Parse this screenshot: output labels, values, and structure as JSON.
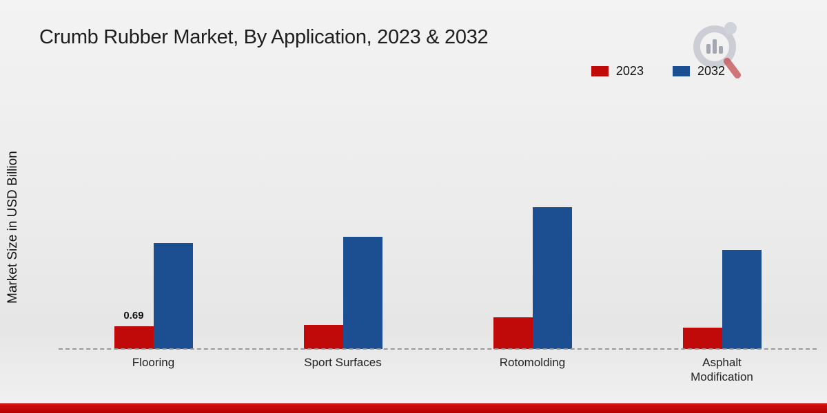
{
  "page": {
    "title": "Crumb Rubber Market, By Application, 2023 & 2032",
    "y_axis_label": "Market Size in USD Billion"
  },
  "legend": [
    {
      "label": "2023",
      "color": "#c00a0a"
    },
    {
      "label": "2032",
      "color": "#1b4f91"
    }
  ],
  "chart_data": {
    "type": "bar",
    "title": "Crumb Rubber Market, By Application, 2023 & 2032",
    "ylabel": "Market Size in USD Billion",
    "categories": [
      "Flooring",
      "Sport Surfaces",
      "Rotomolding",
      "Asphalt Modification"
    ],
    "series": [
      {
        "name": "2023",
        "color": "#c00a0a",
        "values": [
          0.69,
          0.72,
          0.95,
          0.65
        ],
        "labels": [
          "0.69",
          "",
          "",
          ""
        ]
      },
      {
        "name": "2032",
        "color": "#1b4f91",
        "values": [
          3.2,
          3.4,
          4.3,
          3.0
        ],
        "labels": [
          "",
          "",
          "",
          ""
        ]
      }
    ],
    "ylim": [
      0,
      4.6
    ],
    "grid": false,
    "legend_position": "top-right",
    "baseline_style": "dashed"
  }
}
